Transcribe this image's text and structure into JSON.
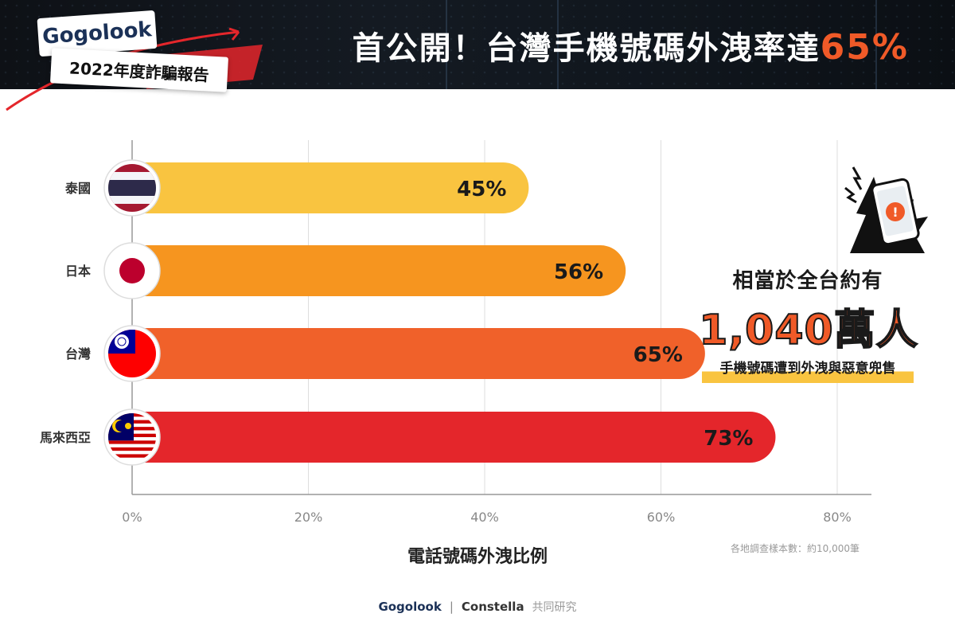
{
  "header": {
    "logo_text": "Gogolook",
    "report_label": "2022年度詐騙報告",
    "headline_main": "首公開！台灣手機號碼外洩率達",
    "headline_accent": "65%"
  },
  "colors": {
    "banner_bg": "#111820",
    "accent_orange": "#f05a28",
    "highlight_yellow": "#f9c440",
    "grid": "#dddddd"
  },
  "chart_data": {
    "type": "bar",
    "orientation": "horizontal",
    "categories": [
      "泰國",
      "日本",
      "台灣",
      "馬來西亞"
    ],
    "values": [
      45,
      56,
      65,
      73
    ],
    "value_labels": [
      "45%",
      "56%",
      "65%",
      "73%"
    ],
    "bar_colors": [
      "#f9c440",
      "#f6951f",
      "#f0612a",
      "#e4262b"
    ],
    "flags": [
      "thailand-flag",
      "japan-flag",
      "taiwan-flag",
      "malaysia-flag"
    ],
    "x_ticks": [
      "0%",
      "20%",
      "40%",
      "60%",
      "80%"
    ],
    "xlim": [
      0,
      80
    ],
    "xlabel": "電話號碼外洩比例",
    "grid": true
  },
  "callout": {
    "icon": "phone-warning-icon",
    "line1": "相當於全台約有",
    "big_number": "1,040萬人",
    "line3": "手機號碼遭到外洩與惡意兜售"
  },
  "note": "各地調查樣本數：約10,000筆",
  "footer": {
    "brand": "Gogolook",
    "separator": "|",
    "partner": "Constella",
    "joint": "共同研究"
  }
}
